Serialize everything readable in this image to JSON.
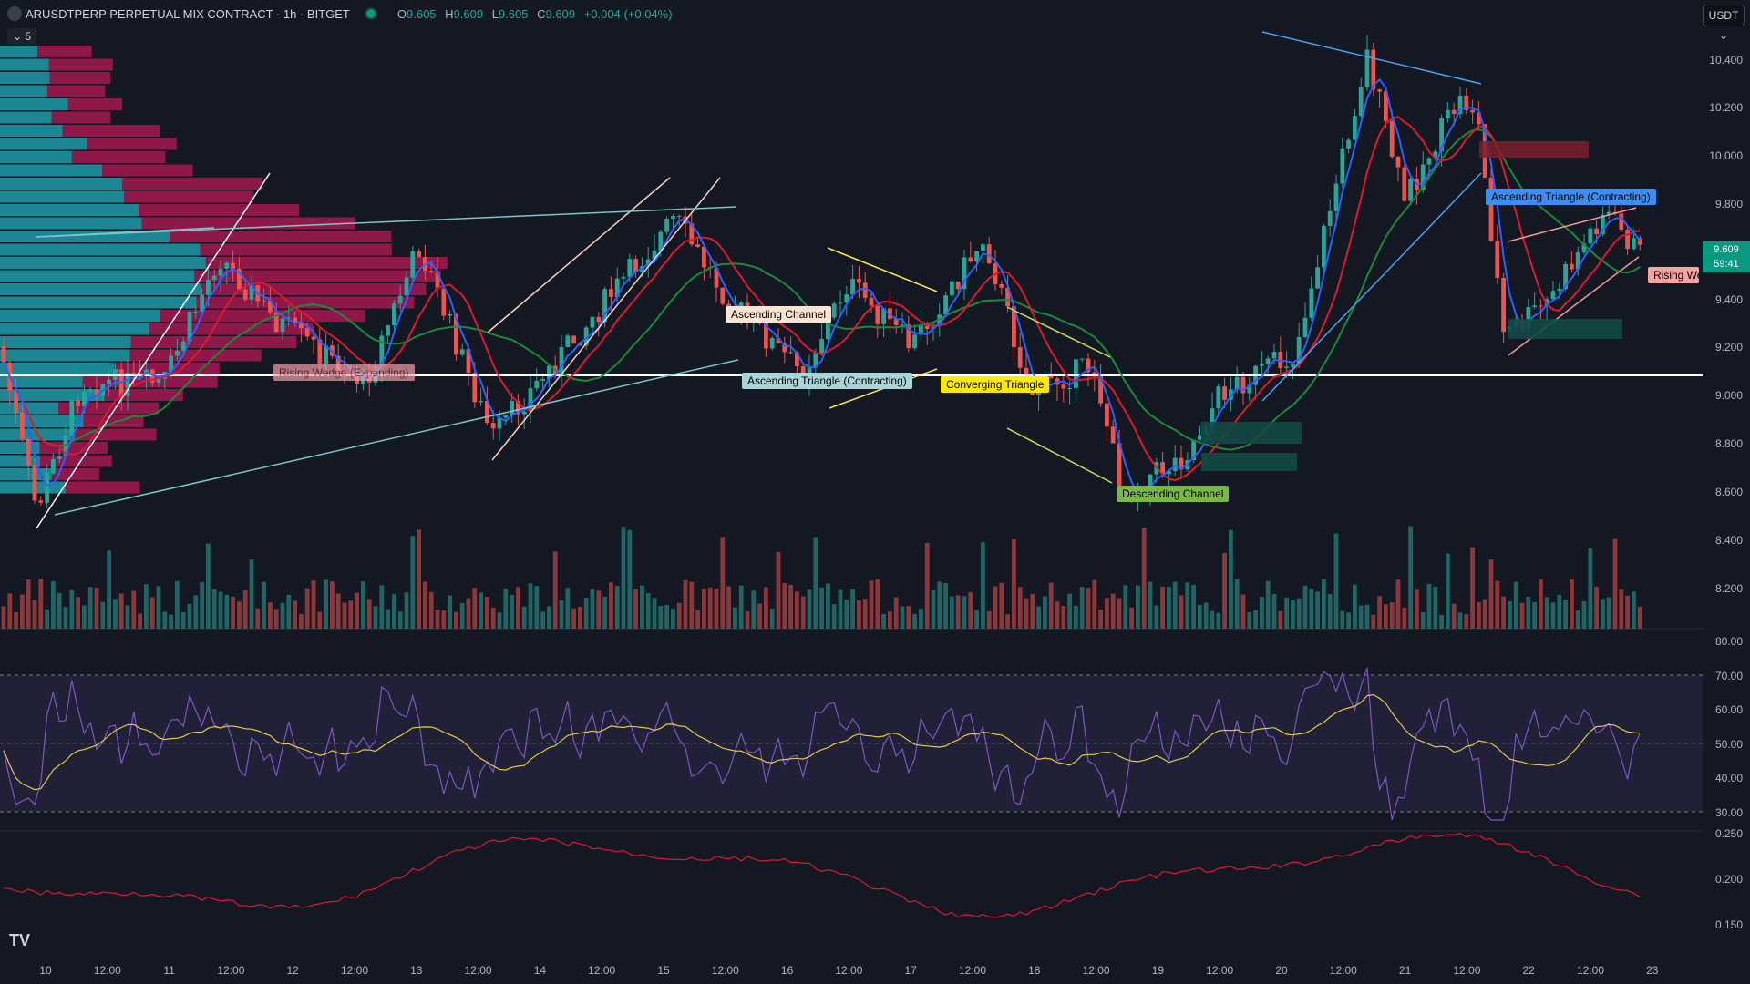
{
  "header": {
    "symbol": "ARUSDTPERP PERPETUAL MIX CONTRACT · 1h · BITGET",
    "o_label": "O",
    "o_value": "9.605",
    "h_label": "H",
    "h_value": "9.609",
    "l_label": "L",
    "l_value": "9.605",
    "c_label": "C",
    "c_value": "9.609",
    "change": "+0.004 (+0.04%)"
  },
  "indicators_button": "⌄ 5",
  "currency": "USDT ⌄",
  "price_axis": [
    "10.400",
    "10.200",
    "10.000",
    "9.800",
    "9.400",
    "9.200",
    "9.000",
    "8.800",
    "8.600",
    "8.400",
    "8.200"
  ],
  "last_price": {
    "price": "9.609",
    "countdown": "59:41"
  },
  "rsi_axis": [
    "80.00",
    "70.00",
    "60.00",
    "50.00",
    "40.00",
    "30.00"
  ],
  "osc_axis": [
    "0.250",
    "0.200",
    "0.150"
  ],
  "time_axis": [
    "10",
    "12:00",
    "11",
    "12:00",
    "12",
    "12:00",
    "13",
    "12:00",
    "14",
    "12:00",
    "15",
    "12:00",
    "16",
    "12:00",
    "17",
    "12:00",
    "18",
    "12:00",
    "19",
    "12:00",
    "20",
    "12:00",
    "21",
    "12:00",
    "22",
    "12:00",
    "23"
  ],
  "patterns": [
    {
      "label": "Rising Wedge (Expanding)"
    },
    {
      "label": "Ascending Channel"
    },
    {
      "label": "Ascending Triangle (Contracting)"
    },
    {
      "label": "Converging Triangle"
    },
    {
      "label": "Descending Channel"
    },
    {
      "label": "Ascending Triangle (Contracting)"
    },
    {
      "label": "Rising Wedge"
    }
  ],
  "colors": {
    "bull": "#26a69a",
    "bear": "#ef5350",
    "bg": "#141823",
    "rsi": "#7e57c2"
  },
  "logo": "TV"
}
